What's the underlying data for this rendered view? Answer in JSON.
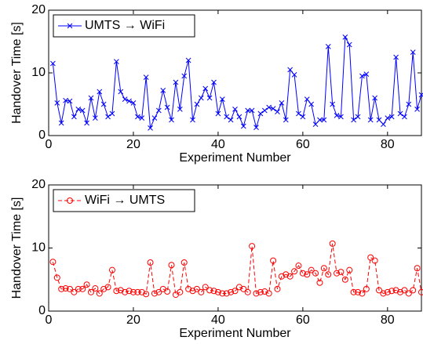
{
  "chart_data": [
    {
      "type": "line",
      "xlabel": "Experiment Number",
      "ylabel": "Handover Time [s]",
      "x": [
        1,
        2,
        3,
        4,
        5,
        6,
        7,
        8,
        9,
        10,
        11,
        12,
        13,
        14,
        15,
        16,
        17,
        18,
        19,
        20,
        21,
        22,
        23,
        24,
        25,
        26,
        27,
        28,
        29,
        30,
        31,
        32,
        33,
        34,
        35,
        36,
        37,
        38,
        39,
        40,
        41,
        42,
        43,
        44,
        45,
        46,
        47,
        48,
        49,
        50,
        51,
        52,
        53,
        54,
        55,
        56,
        57,
        58,
        59,
        60,
        61,
        62,
        63,
        64,
        65,
        66,
        67,
        68,
        69,
        70,
        71,
        72,
        73,
        74,
        75,
        76,
        77,
        78,
        79,
        80,
        81,
        82,
        83,
        84,
        85,
        86,
        87,
        88
      ],
      "series": [
        {
          "name": "UMTS → WiFi",
          "color": "#0000ff",
          "marker": "x",
          "linestyle": "solid",
          "values": [
            11.5,
            5.2,
            2,
            5.6,
            5.5,
            3,
            4.2,
            4,
            2,
            6,
            2.8,
            7,
            5,
            3,
            3.5,
            11.8,
            7,
            5.8,
            5.5,
            5.2,
            3,
            2.8,
            9.3,
            1.2,
            2.8,
            4,
            7.2,
            4.5,
            2.5,
            8.5,
            4.2,
            9.5,
            12,
            2.5,
            5,
            6,
            7.5,
            6,
            8.5,
            3.5,
            5.8,
            3,
            2.5,
            4.2,
            3,
            1.5,
            4,
            4,
            1.3,
            3.5,
            4,
            4.5,
            4.3,
            3.8,
            5.2,
            2.5,
            10.5,
            9.7,
            3.5,
            3,
            5.8,
            5,
            1.8,
            2.5,
            2.5,
            14.2,
            5,
            3.2,
            3,
            15.7,
            14.5,
            2.5,
            3,
            9.5,
            9.8,
            2.5,
            6,
            2.5,
            1.8,
            2.8,
            3,
            12.5,
            3.5,
            3,
            5,
            13.3,
            4.2,
            6.5
          ]
        }
      ],
      "xlim": [
        0,
        88
      ],
      "ylim": [
        0,
        20
      ],
      "xticks": [
        0,
        20,
        40,
        60,
        80
      ],
      "yticks": [
        0,
        10,
        20
      ],
      "legend": "upper left"
    },
    {
      "type": "line",
      "xlabel": "Experiment Number",
      "ylabel": "Handover Time [s]",
      "x": [
        1,
        2,
        3,
        4,
        5,
        6,
        7,
        8,
        9,
        10,
        11,
        12,
        13,
        14,
        15,
        16,
        17,
        18,
        19,
        20,
        21,
        22,
        23,
        24,
        25,
        26,
        27,
        28,
        29,
        30,
        31,
        32,
        33,
        34,
        35,
        36,
        37,
        38,
        39,
        40,
        41,
        42,
        43,
        44,
        45,
        46,
        47,
        48,
        49,
        50,
        51,
        52,
        53,
        54,
        55,
        56,
        57,
        58,
        59,
        60,
        61,
        62,
        63,
        64,
        65,
        66,
        67,
        68,
        69,
        70,
        71,
        72,
        73,
        74,
        75,
        76,
        77,
        78,
        79,
        80,
        81,
        82,
        83,
        84,
        85,
        86,
        87,
        88
      ],
      "series": [
        {
          "name": "WiFi → UMTS",
          "color": "#ff0000",
          "marker": "o",
          "linestyle": "dashed",
          "values": [
            7.8,
            5.3,
            3.5,
            3.6,
            3.5,
            3,
            3.5,
            3.5,
            4.2,
            3,
            3.6,
            2.8,
            3.5,
            3.8,
            6.5,
            3.2,
            3.3,
            3,
            3.2,
            3,
            3,
            3,
            2.7,
            7.7,
            2.8,
            3,
            3.5,
            3.1,
            7.3,
            2.6,
            3,
            7.7,
            3.5,
            3.2,
            3.5,
            3,
            3.8,
            3.3,
            3.2,
            3,
            2.8,
            2.8,
            3,
            3.2,
            3.8,
            3.5,
            3,
            10.3,
            2.8,
            3,
            3.1,
            2.8,
            8,
            3.5,
            5.5,
            5.8,
            5.5,
            6.3,
            7.2,
            6,
            5.8,
            6.5,
            6,
            4.5,
            6.8,
            5.8,
            10.7,
            6,
            6.2,
            5,
            6.5,
            3,
            3,
            2.8,
            3.5,
            8.5,
            8,
            3.3,
            2.8,
            3,
            3.2,
            3.3,
            3,
            3.3,
            2.8,
            3.3,
            6.8,
            3
          ]
        }
      ],
      "xlim": [
        0,
        88
      ],
      "ylim": [
        0,
        20
      ],
      "xticks": [
        0,
        20,
        40,
        60,
        80
      ],
      "yticks": [
        0,
        10,
        20
      ],
      "legend": "upper left"
    }
  ]
}
